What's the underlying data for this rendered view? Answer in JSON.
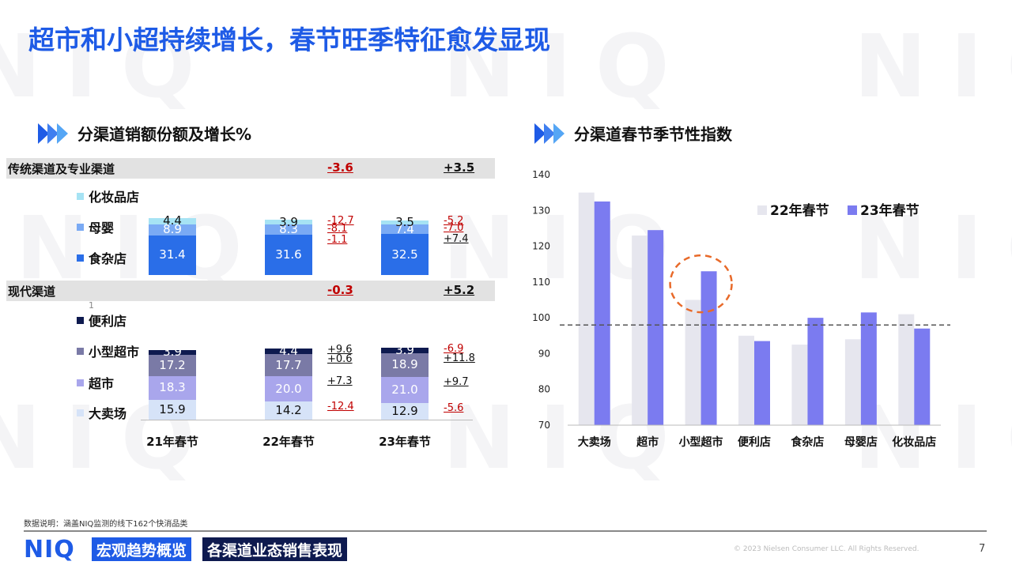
{
  "title": "超市和小超持续增长，春节旺季特征愈发显现",
  "watermark": "NIQ",
  "left_section": {
    "heading": "分渠道销额份额及增长%",
    "groups": [
      {
        "label": "传统渠道及专业渠道",
        "change_22": "-3.6",
        "change_23": "+3.5"
      },
      {
        "label": "现代渠道",
        "change_22": "-0.3",
        "change_23": "+5.2"
      }
    ],
    "legend": [
      {
        "label": "化妆品店",
        "color": "#a6e3f4"
      },
      {
        "label": "母婴",
        "color": "#7aaaf4"
      },
      {
        "label": "食杂店",
        "color": "#2a6ee8"
      },
      {
        "label": "便利店",
        "color": "#0e1a4f"
      },
      {
        "label": "小型超市",
        "color": "#7a7aa6"
      },
      {
        "label": "超市",
        "color": "#a9a6ec"
      },
      {
        "label": "大卖场",
        "color": "#d6e3f8"
      }
    ],
    "stray_mark": "1"
  },
  "right_section": {
    "heading": "分渠道春节季节性指数"
  },
  "chart_data": [
    {
      "type": "bar",
      "stacked": true,
      "categories": [
        "21年春节",
        "22年春节",
        "23年春节"
      ],
      "series": [
        {
          "name": "化妆品店",
          "group": "传统渠道及专业渠道",
          "values": [
            4.4,
            3.9,
            3.5
          ],
          "change": [
            "",
            "-12.7",
            "-5.2"
          ],
          "color": "#a6e3f4"
        },
        {
          "name": "母婴",
          "group": "传统渠道及专业渠道",
          "values": [
            8.9,
            8.3,
            7.4
          ],
          "change": [
            "",
            "-8.1",
            "-7.0"
          ],
          "color": "#7aaaf4"
        },
        {
          "name": "食杂店",
          "group": "传统渠道及专业渠道",
          "values": [
            31.4,
            31.6,
            32.5
          ],
          "change": [
            "",
            "-1.1",
            "+7.4"
          ],
          "color": "#2a6ee8"
        },
        {
          "name": "便利店",
          "group": "现代渠道",
          "values": [
            3.9,
            4.4,
            3.9
          ],
          "change": [
            "",
            "+9.6",
            "-6.9"
          ],
          "color": "#0e1a4f"
        },
        {
          "name": "小型超市",
          "group": "现代渠道",
          "values": [
            17.2,
            17.7,
            18.9
          ],
          "change": [
            "",
            "+0.6",
            "+11.8"
          ],
          "color": "#7a7aa6"
        },
        {
          "name": "超市",
          "group": "现代渠道",
          "values": [
            18.3,
            20.0,
            21.0
          ],
          "change": [
            "",
            "+7.3",
            "+9.7"
          ],
          "color": "#a9a6ec"
        },
        {
          "name": "大卖场",
          "group": "现代渠道",
          "values": [
            15.9,
            14.2,
            12.9
          ],
          "change": [
            "",
            "-12.4",
            "-5.6"
          ],
          "color": "#d6e3f8"
        }
      ]
    },
    {
      "type": "bar",
      "categories": [
        "大卖场",
        "超市",
        "小型超市",
        "便利店",
        "食杂店",
        "母婴店",
        "化妆品店"
      ],
      "series": [
        {
          "name": "22年春节",
          "values": [
            135,
            123,
            105,
            95,
            92.5,
            94,
            101
          ],
          "color": "#e6e6ee"
        },
        {
          "name": "23年春节",
          "values": [
            132.5,
            124.5,
            113,
            93.5,
            100,
            101.5,
            97
          ],
          "color": "#7b7bf0"
        }
      ],
      "ylim": [
        70,
        140
      ],
      "yticks": [
        70,
        80,
        90,
        100,
        110,
        120,
        130,
        140
      ],
      "reference_line": 98,
      "highlight_category": "小型超市",
      "legend_position": "top-right",
      "grid": false
    }
  ],
  "footer": {
    "footnote": "数据说明：涵盖NIQ监测的线下162个快消品类",
    "logo": "NIQ",
    "tag1": "宏观趋势概览",
    "tag1_color": "#1e5be6",
    "tag2": "各渠道业态销售表现",
    "tag2_color": "#0e1a4f",
    "copyright": "© 2023 Nielsen Consumer LLC. All Rights Reserved.",
    "page": "7"
  }
}
